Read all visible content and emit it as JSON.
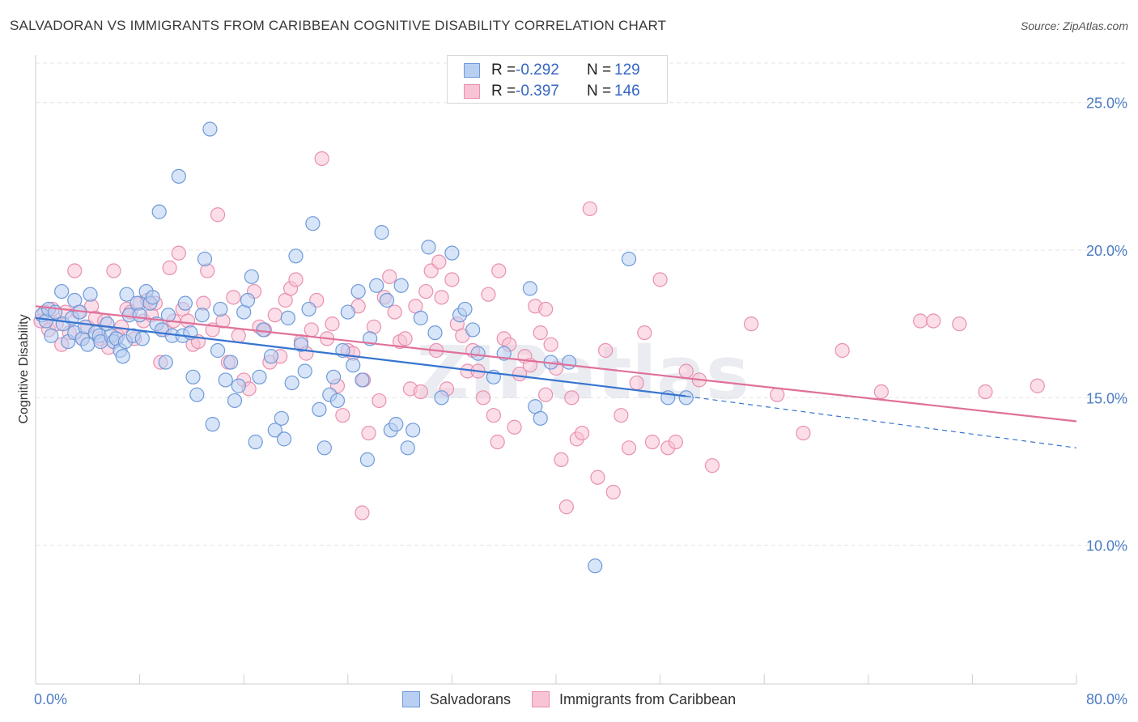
{
  "header": {
    "title": "SALVADORAN VS IMMIGRANTS FROM CARIBBEAN COGNITIVE DISABILITY CORRELATION CHART",
    "source": "Source: ZipAtlas.com"
  },
  "legend": {
    "rows": [
      {
        "r_key": "R =",
        "r_value": "-0.292",
        "n_key": "N =",
        "n_value": "129"
      },
      {
        "r_key": "R =",
        "r_value": "-0.397",
        "n_key": "N =",
        "n_value": "146"
      }
    ]
  },
  "colors": {
    "blue_fill": "#b8cff2",
    "blue_stroke": "#6f9ad8",
    "blue_line": "#3674d0",
    "pink_fill": "#f7c3d5",
    "pink_stroke": "#e990b0",
    "pink_line": "#e0709a",
    "grid": "#e4e4e4",
    "tick_text": "#4d7cc4"
  },
  "chart_data": {
    "type": "scatter",
    "title": "SALVADORAN VS IMMIGRANTS FROM CARIBBEAN COGNITIVE DISABILITY CORRELATION CHART",
    "xlabel": "",
    "ylabel": "Cognitive Disability",
    "xlim": [
      0,
      80
    ],
    "ylim": [
      5.3,
      26.5
    ],
    "y_ticks": [
      10,
      15,
      20,
      25
    ],
    "y_tick_labels": [
      "10.0%",
      "15.0%",
      "20.0%",
      "25.0%"
    ],
    "x_tick_labels": [
      "0.0%",
      "80.0%"
    ],
    "grid": "horizontal dashed",
    "legend_placement": "top-center and bottom",
    "series": [
      {
        "name": "Salvadorans",
        "R": -0.292,
        "N": 129,
        "trend": {
          "x0": 0,
          "y0": 17.7,
          "x1": 50,
          "y1": 15.05
        },
        "trend_dashed_extension": {
          "x0": 50,
          "y0": 15.05,
          "x1": 80,
          "y1": 13.3
        },
        "points": [
          [
            0.5,
            17.8
          ],
          [
            0.8,
            17.6
          ],
          [
            1,
            18.0
          ],
          [
            1.2,
            17.1
          ],
          [
            1.5,
            17.9
          ],
          [
            2,
            18.6
          ],
          [
            2.1,
            17.5
          ],
          [
            2.5,
            16.9
          ],
          [
            2.8,
            17.7
          ],
          [
            3,
            18.3
          ],
          [
            3,
            17.2
          ],
          [
            3.4,
            17.9
          ],
          [
            3.6,
            17.0
          ],
          [
            3.8,
            17.4
          ],
          [
            4,
            16.8
          ],
          [
            4.2,
            18.5
          ],
          [
            4.6,
            17.2
          ],
          [
            4.9,
            17.1
          ],
          [
            5,
            16.9
          ],
          [
            5.5,
            17.5
          ],
          [
            5.8,
            17.1
          ],
          [
            6,
            16.9
          ],
          [
            6.2,
            17.0
          ],
          [
            6.5,
            16.6
          ],
          [
            6.7,
            16.4
          ],
          [
            6.9,
            16.9
          ],
          [
            7,
            18.5
          ],
          [
            7.2,
            17.8
          ],
          [
            7.5,
            17.1
          ],
          [
            7.8,
            18.2
          ],
          [
            8,
            17.8
          ],
          [
            8.2,
            17.0
          ],
          [
            8.5,
            18.6
          ],
          [
            8.8,
            18.2
          ],
          [
            9,
            18.4
          ],
          [
            9.3,
            17.5
          ],
          [
            9.5,
            21.3
          ],
          [
            9.7,
            17.3
          ],
          [
            10,
            16.2
          ],
          [
            10.2,
            17.8
          ],
          [
            10.5,
            17.1
          ],
          [
            11,
            22.5
          ],
          [
            11.3,
            17.1
          ],
          [
            11.5,
            18.2
          ],
          [
            11.9,
            17.2
          ],
          [
            12.1,
            15.7
          ],
          [
            12.4,
            15.1
          ],
          [
            12.8,
            17.8
          ],
          [
            13,
            19.7
          ],
          [
            13.4,
            24.1
          ],
          [
            13.6,
            14.1
          ],
          [
            14,
            16.6
          ],
          [
            14.2,
            18.0
          ],
          [
            14.6,
            15.6
          ],
          [
            15,
            16.2
          ],
          [
            15.3,
            14.9
          ],
          [
            15.6,
            15.4
          ],
          [
            16,
            17.9
          ],
          [
            16.3,
            18.3
          ],
          [
            16.6,
            19.1
          ],
          [
            16.9,
            13.5
          ],
          [
            17.2,
            15.7
          ],
          [
            17.5,
            17.3
          ],
          [
            18.1,
            16.4
          ],
          [
            18.4,
            13.9
          ],
          [
            18.9,
            14.3
          ],
          [
            19.1,
            13.6
          ],
          [
            19.4,
            17.7
          ],
          [
            19.7,
            15.5
          ],
          [
            20,
            19.8
          ],
          [
            20.4,
            16.8
          ],
          [
            20.7,
            15.9
          ],
          [
            21,
            18.0
          ],
          [
            21.3,
            20.9
          ],
          [
            21.8,
            14.6
          ],
          [
            22.2,
            13.3
          ],
          [
            22.6,
            15.1
          ],
          [
            22.9,
            15.7
          ],
          [
            23.2,
            14.9
          ],
          [
            23.6,
            16.6
          ],
          [
            24,
            17.9
          ],
          [
            24.4,
            16.1
          ],
          [
            24.8,
            18.6
          ],
          [
            25.1,
            15.6
          ],
          [
            25.5,
            12.9
          ],
          [
            25.7,
            17.0
          ],
          [
            26.2,
            18.8
          ],
          [
            26.6,
            20.6
          ],
          [
            27,
            18.3
          ],
          [
            27.3,
            13.9
          ],
          [
            27.7,
            14.1
          ],
          [
            28.1,
            18.8
          ],
          [
            28.6,
            13.3
          ],
          [
            29,
            13.9
          ],
          [
            29.6,
            17.7
          ],
          [
            30.2,
            20.1
          ],
          [
            30.7,
            17.2
          ],
          [
            31.2,
            15.0
          ],
          [
            32,
            19.9
          ],
          [
            32.6,
            17.8
          ],
          [
            33,
            18.0
          ],
          [
            33.6,
            17.3
          ],
          [
            34,
            16.5
          ],
          [
            35.2,
            15.7
          ],
          [
            36,
            16.5
          ],
          [
            38,
            18.7
          ],
          [
            38.4,
            14.7
          ],
          [
            38.8,
            14.3
          ],
          [
            39.6,
            16.2
          ],
          [
            41,
            16.2
          ],
          [
            43,
            9.3
          ],
          [
            45.6,
            19.7
          ],
          [
            48.6,
            15.0
          ],
          [
            50,
            15.0
          ]
        ]
      },
      {
        "name": "Immigrants from Caribbean",
        "R": -0.397,
        "N": 146,
        "trend": {
          "x0": 0,
          "y0": 18.1,
          "x1": 80,
          "y1": 14.2
        },
        "points": [
          [
            0.4,
            17.6
          ],
          [
            0.7,
            17.9
          ],
          [
            1,
            17.3
          ],
          [
            1.3,
            18.0
          ],
          [
            1.6,
            17.5
          ],
          [
            2,
            16.8
          ],
          [
            2.3,
            17.9
          ],
          [
            2.6,
            17.2
          ],
          [
            3,
            19.3
          ],
          [
            3.3,
            17.9
          ],
          [
            3.6,
            17.0
          ],
          [
            4,
            17.4
          ],
          [
            4.3,
            18.1
          ],
          [
            4.6,
            17.7
          ],
          [
            5,
            17.0
          ],
          [
            5.3,
            17.6
          ],
          [
            5.6,
            16.7
          ],
          [
            6,
            19.3
          ],
          [
            6.3,
            17.1
          ],
          [
            6.6,
            17.4
          ],
          [
            7,
            18.0
          ],
          [
            7.3,
            17.9
          ],
          [
            7.6,
            17.0
          ],
          [
            8,
            18.2
          ],
          [
            8.3,
            17.6
          ],
          [
            8.6,
            18.3
          ],
          [
            8.9,
            17.8
          ],
          [
            9.2,
            18.2
          ],
          [
            9.6,
            16.2
          ],
          [
            9.9,
            17.3
          ],
          [
            10.3,
            19.4
          ],
          [
            10.6,
            17.6
          ],
          [
            11,
            19.9
          ],
          [
            11.3,
            18.0
          ],
          [
            11.7,
            17.6
          ],
          [
            12.1,
            16.8
          ],
          [
            12.5,
            16.9
          ],
          [
            12.9,
            18.2
          ],
          [
            13.2,
            19.3
          ],
          [
            13.6,
            17.3
          ],
          [
            14,
            21.2
          ],
          [
            14.4,
            17.6
          ],
          [
            14.8,
            16.2
          ],
          [
            15.2,
            18.4
          ],
          [
            15.6,
            17.1
          ],
          [
            16,
            15.6
          ],
          [
            16.4,
            15.3
          ],
          [
            16.8,
            18.6
          ],
          [
            17.2,
            17.4
          ],
          [
            17.6,
            17.3
          ],
          [
            18,
            16.2
          ],
          [
            18.4,
            17.8
          ],
          [
            18.8,
            16.4
          ],
          [
            19.2,
            18.3
          ],
          [
            19.6,
            18.7
          ],
          [
            20,
            19.0
          ],
          [
            20.4,
            16.9
          ],
          [
            20.8,
            16.5
          ],
          [
            21.2,
            17.3
          ],
          [
            21.6,
            18.3
          ],
          [
            22,
            23.1
          ],
          [
            22.4,
            17.0
          ],
          [
            22.8,
            17.5
          ],
          [
            23.2,
            15.4
          ],
          [
            23.6,
            14.4
          ],
          [
            24,
            16.6
          ],
          [
            24.4,
            16.5
          ],
          [
            24.8,
            18.1
          ],
          [
            25.2,
            15.6
          ],
          [
            25.6,
            13.8
          ],
          [
            26,
            17.4
          ],
          [
            26.4,
            14.9
          ],
          [
            26.8,
            18.4
          ],
          [
            27.2,
            19.1
          ],
          [
            27.6,
            17.9
          ],
          [
            28,
            16.9
          ],
          [
            28.4,
            17.0
          ],
          [
            28.8,
            15.3
          ],
          [
            29.2,
            18.1
          ],
          [
            29.6,
            15.2
          ],
          [
            30,
            18.6
          ],
          [
            30.4,
            19.3
          ],
          [
            30.8,
            16.6
          ],
          [
            31.2,
            18.4
          ],
          [
            31.6,
            15.3
          ],
          [
            32,
            19.0
          ],
          [
            32.4,
            17.5
          ],
          [
            32.8,
            17.1
          ],
          [
            33.2,
            15.9
          ],
          [
            33.6,
            16.6
          ],
          [
            34,
            15.9
          ],
          [
            34.4,
            15.0
          ],
          [
            34.8,
            18.5
          ],
          [
            35.2,
            14.4
          ],
          [
            35.6,
            19.3
          ],
          [
            36,
            17.0
          ],
          [
            36.4,
            16.8
          ],
          [
            36.8,
            14.0
          ],
          [
            37.2,
            15.8
          ],
          [
            37.6,
            16.4
          ],
          [
            38,
            16.1
          ],
          [
            38.4,
            18.1
          ],
          [
            38.8,
            17.2
          ],
          [
            39.2,
            18.0
          ],
          [
            39.6,
            16.8
          ],
          [
            40,
            16.0
          ],
          [
            40.4,
            12.9
          ],
          [
            40.8,
            11.3
          ],
          [
            41.2,
            15.0
          ],
          [
            41.6,
            13.6
          ],
          [
            42,
            13.8
          ],
          [
            42.6,
            21.4
          ],
          [
            43.2,
            12.3
          ],
          [
            43.8,
            16.6
          ],
          [
            44.4,
            11.8
          ],
          [
            45,
            14.4
          ],
          [
            45.6,
            13.3
          ],
          [
            46.2,
            15.5
          ],
          [
            46.8,
            17.2
          ],
          [
            47.4,
            13.5
          ],
          [
            48,
            19.0
          ],
          [
            48.6,
            13.3
          ],
          [
            49.2,
            13.5
          ],
          [
            50,
            15.9
          ],
          [
            51,
            15.6
          ],
          [
            52,
            12.7
          ],
          [
            55,
            17.5
          ],
          [
            57,
            15.1
          ],
          [
            59,
            13.8
          ],
          [
            62,
            16.6
          ],
          [
            65,
            15.2
          ],
          [
            68,
            17.6
          ],
          [
            71,
            17.5
          ],
          [
            73,
            15.2
          ],
          [
            69,
            17.6
          ],
          [
            77,
            15.4
          ],
          [
            39.2,
            15.1
          ],
          [
            31,
            19.6
          ],
          [
            25.1,
            11.1
          ],
          [
            35.5,
            13.5
          ]
        ]
      }
    ]
  },
  "bottom_legend": {
    "items": [
      "Salvadorans",
      "Immigrants from Caribbean"
    ]
  },
  "watermark": "ZIPatlas"
}
